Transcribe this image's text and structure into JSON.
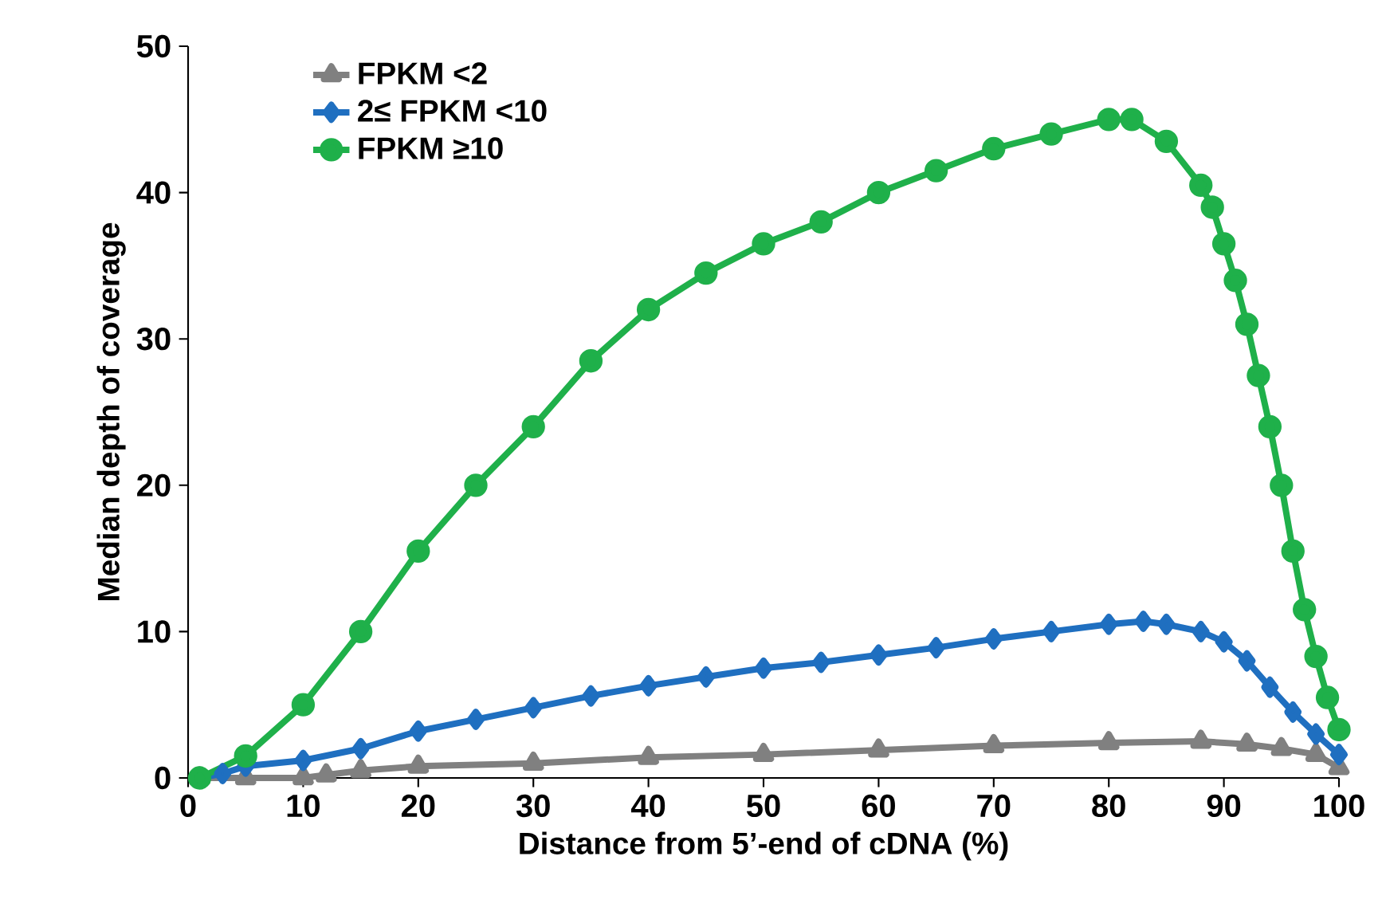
{
  "chart_data": {
    "type": "line",
    "xlabel": "Distance from 5’-end of cDNA (%)",
    "ylabel": "Median depth of coverage",
    "xlim": [
      0,
      100
    ],
    "xticks": [
      0,
      10,
      20,
      30,
      40,
      50,
      60,
      70,
      80,
      90,
      100
    ],
    "ylim": [
      0,
      50
    ],
    "yticks": [
      0,
      10,
      20,
      30,
      40,
      50
    ],
    "grid": false,
    "legend": "top left",
    "line_style": "solid",
    "series": [
      {
        "name": "FPKM <2",
        "color": "#808080",
        "marker": "triangle",
        "x": [
          1,
          5,
          10,
          12,
          15,
          20,
          30,
          40,
          50,
          60,
          70,
          80,
          88,
          92,
          95,
          98,
          100
        ],
        "values": [
          0,
          0,
          0,
          0.2,
          0.5,
          0.8,
          1,
          1.4,
          1.6,
          1.9,
          2.2,
          2.4,
          2.5,
          2.3,
          2,
          1.6,
          0.7
        ]
      },
      {
        "name": "2≤ FPKM <10",
        "color": "#1f6fc0",
        "marker": "diamond",
        "x": [
          1,
          3,
          5,
          10,
          15,
          20,
          25,
          30,
          35,
          40,
          45,
          50,
          55,
          60,
          65,
          70,
          75,
          80,
          83,
          85,
          88,
          90,
          92,
          94,
          96,
          98,
          100
        ],
        "values": [
          0,
          0.3,
          0.8,
          1.2,
          2,
          3.2,
          4,
          4.8,
          5.6,
          6.3,
          6.9,
          7.5,
          7.9,
          8.4,
          8.9,
          9.5,
          10,
          10.5,
          10.7,
          10.5,
          10,
          9.3,
          8,
          6.2,
          4.5,
          3,
          1.6
        ]
      },
      {
        "name": "FPKM ≥10",
        "color": "#1fb04a",
        "marker": "circle",
        "x": [
          1,
          5,
          10,
          15,
          20,
          25,
          30,
          35,
          40,
          45,
          50,
          55,
          60,
          65,
          70,
          75,
          80,
          82,
          85,
          88,
          89,
          90,
          91,
          92,
          93,
          94,
          95,
          96,
          97,
          98,
          99,
          100
        ],
        "values": [
          0,
          1.5,
          5,
          10,
          15.5,
          20,
          24,
          28.5,
          32,
          34.5,
          36.5,
          38,
          40,
          41.5,
          43,
          44,
          45,
          45,
          43.5,
          40.5,
          39,
          36.5,
          34,
          31,
          27.5,
          24,
          20,
          15.5,
          11.5,
          8.3,
          5.5,
          3.3
        ]
      }
    ]
  }
}
